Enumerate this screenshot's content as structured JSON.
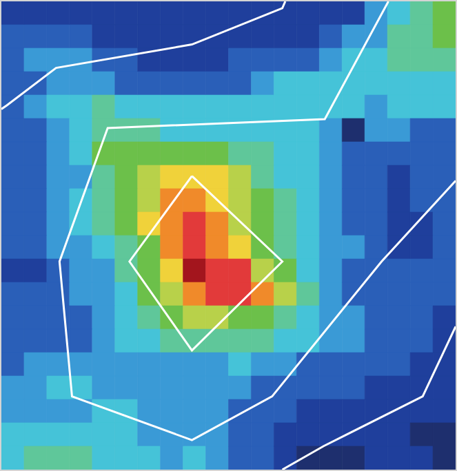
{
  "chart_data": {
    "type": "heatmap",
    "xlim": [
      0,
      20
    ],
    "ylim": [
      0,
      20
    ],
    "tick_labels": false,
    "zlim": [
      0,
      11
    ],
    "color": "#ffffff",
    "cells": [
      [
        1,
        1,
        1,
        1,
        1,
        1,
        1,
        1,
        1,
        1,
        1,
        1,
        1,
        1,
        1,
        1,
        3,
        4,
        5,
        6
      ],
      [
        2,
        2,
        2,
        2,
        1,
        1,
        1,
        1,
        1,
        1,
        1,
        1,
        1,
        1,
        2,
        3,
        3,
        5,
        5,
        6
      ],
      [
        2,
        3,
        3,
        3,
        2,
        2,
        1,
        1,
        1,
        1,
        2,
        2,
        2,
        2,
        3,
        4,
        4,
        5,
        5,
        5
      ],
      [
        2,
        2,
        3,
        3,
        3,
        2,
        2,
        2,
        2,
        2,
        2,
        3,
        4,
        4,
        4,
        4,
        4,
        4,
        4,
        4
      ],
      [
        2,
        3,
        4,
        4,
        5,
        4,
        4,
        4,
        4,
        4,
        4,
        4,
        4,
        4,
        4,
        4,
        3,
        4,
        4,
        4
      ],
      [
        2,
        2,
        3,
        4,
        5,
        5,
        5,
        4,
        4,
        4,
        4,
        4,
        4,
        4,
        3,
        0,
        3,
        3,
        2,
        2
      ],
      [
        2,
        2,
        3,
        4,
        6,
        6,
        6,
        6,
        6,
        6,
        5,
        5,
        4,
        4,
        3,
        2,
        2,
        2,
        2,
        2
      ],
      [
        2,
        2,
        3,
        3,
        5,
        6,
        7,
        8,
        8,
        8,
        7,
        5,
        4,
        4,
        3,
        2,
        2,
        1,
        2,
        2
      ],
      [
        2,
        2,
        3,
        4,
        5,
        6,
        7,
        9,
        9,
        8,
        7,
        6,
        5,
        4,
        3,
        2,
        2,
        1,
        2,
        2
      ],
      [
        2,
        2,
        3,
        4,
        5,
        6,
        8,
        9,
        10,
        9,
        7,
        6,
        5,
        4,
        3,
        2,
        2,
        1,
        1,
        2
      ],
      [
        2,
        2,
        3,
        3,
        4,
        5,
        6,
        9,
        10,
        9,
        8,
        6,
        5,
        4,
        3,
        3,
        2,
        1,
        1,
        2
      ],
      [
        1,
        1,
        2,
        3,
        3,
        5,
        6,
        8,
        11,
        10,
        10,
        7,
        6,
        4,
        3,
        2,
        2,
        2,
        2,
        2
      ],
      [
        2,
        2,
        2,
        3,
        3,
        4,
        6,
        7,
        9,
        10,
        10,
        9,
        7,
        5,
        3,
        2,
        2,
        2,
        2,
        2
      ],
      [
        2,
        2,
        2,
        2,
        3,
        4,
        5,
        6,
        7,
        7,
        6,
        6,
        5,
        4,
        3,
        3,
        2,
        2,
        2,
        1
      ],
      [
        2,
        2,
        2,
        2,
        3,
        4,
        4,
        5,
        5,
        5,
        5,
        5,
        4,
        4,
        3,
        3,
        2,
        2,
        2,
        1
      ],
      [
        2,
        3,
        3,
        3,
        3,
        3,
        3,
        3,
        3,
        3,
        4,
        3,
        3,
        2,
        2,
        2,
        2,
        2,
        1,
        1
      ],
      [
        3,
        3,
        4,
        4,
        3,
        3,
        3,
        3,
        3,
        3,
        3,
        2,
        2,
        2,
        2,
        2,
        1,
        1,
        1,
        1
      ],
      [
        3,
        3,
        3,
        3,
        4,
        4,
        3,
        3,
        3,
        3,
        2,
        2,
        2,
        1,
        1,
        1,
        1,
        1,
        1,
        1
      ],
      [
        4,
        4,
        4,
        4,
        4,
        4,
        3,
        3,
        3,
        3,
        2,
        2,
        1,
        1,
        1,
        1,
        1,
        1,
        0,
        0
      ],
      [
        4,
        5,
        5,
        5,
        4,
        4,
        4,
        3,
        4,
        3,
        2,
        2,
        1,
        0,
        0,
        0,
        1,
        1,
        1,
        0
      ]
    ],
    "contours": [
      {
        "points": [
          [
            0,
            4.6
          ],
          [
            0.24,
            4.44
          ],
          [
            2.41,
            2.84
          ],
          [
            8.39,
            1.84
          ],
          [
            12.37,
            0.29
          ],
          [
            12.5,
            0
          ]
        ]
      },
      {
        "points": [
          [
            17.04,
            0
          ],
          [
            14.24,
            5.03
          ],
          [
            4.68,
            5.41
          ],
          [
            2.56,
            11.11
          ],
          [
            3.11,
            16.87
          ],
          [
            8.39,
            18.74
          ],
          [
            11.92,
            16.87
          ],
          [
            16.74,
            11.11
          ],
          [
            20,
            7.66
          ]
        ]
      },
      {
        "points": [
          [
            12.37,
            20
          ],
          [
            14.18,
            19.0
          ],
          [
            18.55,
            16.87
          ],
          [
            20,
            13.89
          ]
        ]
      },
      {
        "points": [
          [
            8.39,
            7.46
          ],
          [
            12.37,
            11.11
          ],
          [
            8.39,
            14.91
          ],
          [
            5.64,
            11.11
          ],
          [
            8.39,
            7.46
          ]
        ]
      }
    ]
  }
}
